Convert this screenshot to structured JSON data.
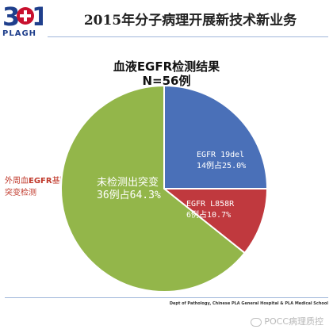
{
  "logo": {
    "mark": "301",
    "text": "PLAGH",
    "icon": "hospital-cross-logo",
    "brand_color": "#c8102e"
  },
  "slide_title": "2015年分子病理开展新技术新业务",
  "side_label": {
    "line1_prefix": "外周血",
    "line1_bold": "EGFR",
    "line1_suffix": "基因",
    "line2": "突变检测"
  },
  "footer": "Dept of Pathology, Chinese PLA General Hospital & PLA Medical School",
  "watermark": "POCC病理质控",
  "watermark_icon": "wechat-icon",
  "colors": {
    "accent": "#c0392b",
    "rule": "#9fb6da"
  },
  "chart_data": {
    "type": "pie",
    "title": "血液EGFR检测结果",
    "subtitle": "N=56例",
    "slices": [
      {
        "label": "EGFR 19del",
        "detail": "14例占25.0%",
        "count": 14,
        "percent": 25.0,
        "color": "#4a70b8"
      },
      {
        "label": "EGFR L858R",
        "detail": "6例占10.7%",
        "count": 6,
        "percent": 10.7,
        "color": "#c0393e"
      },
      {
        "label": "未检测出突变",
        "detail": "36例占64.3%",
        "count": 36,
        "percent": 64.3,
        "color": "#93b64a"
      }
    ],
    "start_angle": "12 o'clock",
    "direction": "clockwise",
    "legend": "none"
  }
}
